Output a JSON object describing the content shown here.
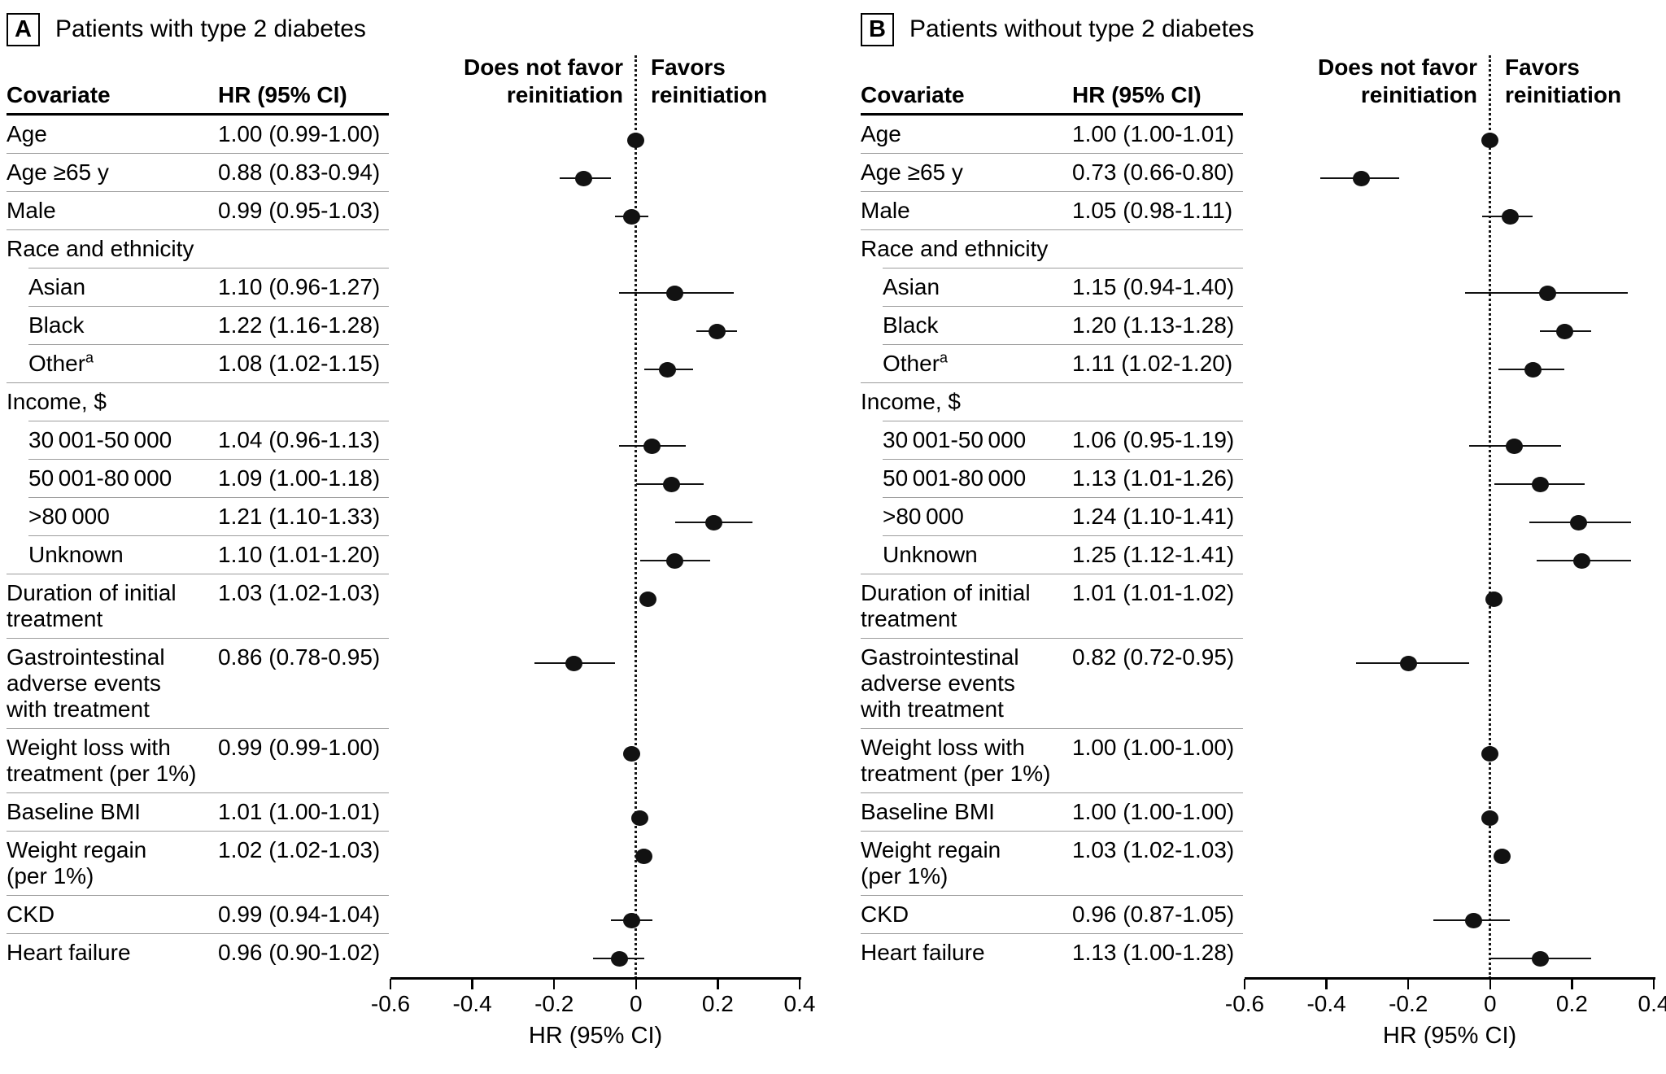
{
  "colors": {
    "text": "#000000",
    "marker": "#121212",
    "divider": "#9c9c9c",
    "axis": "#000000"
  },
  "chart_data": [
    {
      "type": "forest",
      "panel_label": "A",
      "title": "Patients with type 2 diabetes",
      "covariate_header": "Covariate",
      "hr_header": "HR (95% CI)",
      "left_region_label": "Does not favor\nreinitiation",
      "right_region_label": "Favors\nreinitiation",
      "xlabel": "HR (95% CI)",
      "x_ticks": [
        "-0.6",
        "-0.4",
        "-0.2",
        "0",
        "0.2",
        "0.4"
      ],
      "xlim": [
        -0.6,
        0.4
      ],
      "x_transform": "ln(HR)",
      "reference_line": 0,
      "rows": [
        {
          "label": [
            "Age"
          ],
          "hr_text": "1.00 (0.99-1.00)",
          "hr": 1.0,
          "lo": 0.99,
          "hi": 1.0,
          "divider": "full"
        },
        {
          "label": [
            "Age ≥65 y"
          ],
          "hr_text": "0.88 (0.83-0.94)",
          "hr": 0.88,
          "lo": 0.83,
          "hi": 0.94,
          "divider": "full"
        },
        {
          "label": [
            "Male"
          ],
          "hr_text": "0.99 (0.95-1.03)",
          "hr": 0.99,
          "lo": 0.95,
          "hi": 1.03,
          "divider": "full"
        },
        {
          "label": [
            "Race and ethnicity"
          ],
          "group": true,
          "divider": "indent"
        },
        {
          "label": [
            "Asian"
          ],
          "indent": true,
          "hr_text": "1.10 (0.96-1.27)",
          "hr": 1.1,
          "lo": 0.96,
          "hi": 1.27,
          "divider": "indent"
        },
        {
          "label": [
            "Black"
          ],
          "indent": true,
          "hr_text": "1.22 (1.16-1.28)",
          "hr": 1.22,
          "lo": 1.16,
          "hi": 1.28,
          "divider": "indent"
        },
        {
          "label": [
            "Other"
          ],
          "sup": "a",
          "indent": true,
          "hr_text": "1.08 (1.02-1.15)",
          "hr": 1.08,
          "lo": 1.02,
          "hi": 1.15,
          "divider": "full"
        },
        {
          "label": [
            "Income, $"
          ],
          "group": true,
          "divider": "indent"
        },
        {
          "label": [
            "30 001-50 000"
          ],
          "indent": true,
          "hr_text": "1.04 (0.96-1.13)",
          "hr": 1.04,
          "lo": 0.96,
          "hi": 1.13,
          "divider": "indent"
        },
        {
          "label": [
            "50 001-80 000"
          ],
          "indent": true,
          "hr_text": "1.09 (1.00-1.18)",
          "hr": 1.09,
          "lo": 1.0,
          "hi": 1.18,
          "divider": "indent"
        },
        {
          "label": [
            ">80 000"
          ],
          "indent": true,
          "hr_text": "1.21 (1.10-1.33)",
          "hr": 1.21,
          "lo": 1.1,
          "hi": 1.33,
          "divider": "indent"
        },
        {
          "label": [
            "Unknown"
          ],
          "indent": true,
          "hr_text": "1.10 (1.01-1.20)",
          "hr": 1.1,
          "lo": 1.01,
          "hi": 1.2,
          "divider": "full"
        },
        {
          "label": [
            "Duration of initial",
            "treatment"
          ],
          "hr_text": "1.03 (1.02-1.03)",
          "hr": 1.03,
          "lo": 1.02,
          "hi": 1.03,
          "divider": "full"
        },
        {
          "label": [
            "Gastrointestinal",
            "adverse events",
            "with treatment"
          ],
          "hr_text": "0.86 (0.78-0.95)",
          "hr": 0.86,
          "lo": 0.78,
          "hi": 0.95,
          "divider": "full"
        },
        {
          "label": [
            "Weight loss with",
            "treatment (per 1%)"
          ],
          "hr_text": "0.99 (0.99-1.00)",
          "hr": 0.99,
          "lo": 0.99,
          "hi": 1.0,
          "divider": "full"
        },
        {
          "label": [
            "Baseline BMI"
          ],
          "hr_text": "1.01 (1.00-1.01)",
          "hr": 1.01,
          "lo": 1.0,
          "hi": 1.01,
          "divider": "full"
        },
        {
          "label": [
            "Weight regain",
            "(per 1%)"
          ],
          "hr_text": "1.02 (1.02-1.03)",
          "hr": 1.02,
          "lo": 1.02,
          "hi": 1.03,
          "divider": "full"
        },
        {
          "label": [
            "CKD"
          ],
          "hr_text": "0.99 (0.94-1.04)",
          "hr": 0.99,
          "lo": 0.94,
          "hi": 1.04,
          "divider": "full"
        },
        {
          "label": [
            "Heart failure"
          ],
          "hr_text": "0.96 (0.90-1.02)",
          "hr": 0.96,
          "lo": 0.9,
          "hi": 1.02,
          "divider": "none"
        }
      ]
    },
    {
      "type": "forest",
      "panel_label": "B",
      "title": "Patients without type 2 diabetes",
      "covariate_header": "Covariate",
      "hr_header": "HR (95% CI)",
      "left_region_label": "Does not favor\nreinitiation",
      "right_region_label": "Favors\nreinitiation",
      "xlabel": "HR (95% CI)",
      "x_ticks": [
        "-0.6",
        "-0.4",
        "-0.2",
        "0",
        "0.2",
        "0.4"
      ],
      "xlim": [
        -0.6,
        0.4
      ],
      "x_transform": "ln(HR)",
      "reference_line": 0,
      "rows": [
        {
          "label": [
            "Age"
          ],
          "hr_text": "1.00 (1.00-1.01)",
          "hr": 1.0,
          "lo": 1.0,
          "hi": 1.01,
          "divider": "full"
        },
        {
          "label": [
            "Age ≥65 y"
          ],
          "hr_text": "0.73 (0.66-0.80)",
          "hr": 0.73,
          "lo": 0.66,
          "hi": 0.8,
          "divider": "full"
        },
        {
          "label": [
            "Male"
          ],
          "hr_text": "1.05 (0.98-1.11)",
          "hr": 1.05,
          "lo": 0.98,
          "hi": 1.11,
          "divider": "full"
        },
        {
          "label": [
            "Race and ethnicity"
          ],
          "group": true,
          "divider": "indent"
        },
        {
          "label": [
            "Asian"
          ],
          "indent": true,
          "hr_text": "1.15 (0.94-1.40)",
          "hr": 1.15,
          "lo": 0.94,
          "hi": 1.4,
          "divider": "indent"
        },
        {
          "label": [
            "Black"
          ],
          "indent": true,
          "hr_text": "1.20 (1.13-1.28)",
          "hr": 1.2,
          "lo": 1.13,
          "hi": 1.28,
          "divider": "indent"
        },
        {
          "label": [
            "Other"
          ],
          "sup": "a",
          "indent": true,
          "hr_text": "1.11 (1.02-1.20)",
          "hr": 1.11,
          "lo": 1.02,
          "hi": 1.2,
          "divider": "full"
        },
        {
          "label": [
            "Income, $"
          ],
          "group": true,
          "divider": "indent"
        },
        {
          "label": [
            "30 001-50 000"
          ],
          "indent": true,
          "hr_text": "1.06 (0.95-1.19)",
          "hr": 1.06,
          "lo": 0.95,
          "hi": 1.19,
          "divider": "indent"
        },
        {
          "label": [
            "50 001-80 000"
          ],
          "indent": true,
          "hr_text": "1.13 (1.01-1.26)",
          "hr": 1.13,
          "lo": 1.01,
          "hi": 1.26,
          "divider": "indent"
        },
        {
          "label": [
            ">80 000"
          ],
          "indent": true,
          "hr_text": "1.24 (1.10-1.41)",
          "hr": 1.24,
          "lo": 1.1,
          "hi": 1.41,
          "divider": "indent"
        },
        {
          "label": [
            "Unknown"
          ],
          "indent": true,
          "hr_text": "1.25 (1.12-1.41)",
          "hr": 1.25,
          "lo": 1.12,
          "hi": 1.41,
          "divider": "full"
        },
        {
          "label": [
            "Duration of initial",
            "treatment"
          ],
          "hr_text": "1.01 (1.01-1.02)",
          "hr": 1.01,
          "lo": 1.01,
          "hi": 1.02,
          "divider": "full"
        },
        {
          "label": [
            "Gastrointestinal",
            "adverse events",
            "with treatment"
          ],
          "hr_text": "0.82 (0.72-0.95)",
          "hr": 0.82,
          "lo": 0.72,
          "hi": 0.95,
          "divider": "full"
        },
        {
          "label": [
            "Weight loss with",
            "treatment (per 1%)"
          ],
          "hr_text": "1.00 (1.00-1.00)",
          "hr": 1.0,
          "lo": 1.0,
          "hi": 1.0,
          "divider": "full"
        },
        {
          "label": [
            "Baseline BMI"
          ],
          "hr_text": "1.00 (1.00-1.00)",
          "hr": 1.0,
          "lo": 1.0,
          "hi": 1.0,
          "divider": "full"
        },
        {
          "label": [
            "Weight regain",
            "(per 1%)"
          ],
          "hr_text": "1.03 (1.02-1.03)",
          "hr": 1.03,
          "lo": 1.02,
          "hi": 1.03,
          "divider": "full"
        },
        {
          "label": [
            "CKD"
          ],
          "hr_text": "0.96 (0.87-1.05)",
          "hr": 0.96,
          "lo": 0.87,
          "hi": 1.05,
          "divider": "full"
        },
        {
          "label": [
            "Heart failure"
          ],
          "hr_text": "1.13 (1.00-1.28)",
          "hr": 1.13,
          "lo": 1.0,
          "hi": 1.28,
          "divider": "none"
        }
      ]
    }
  ]
}
